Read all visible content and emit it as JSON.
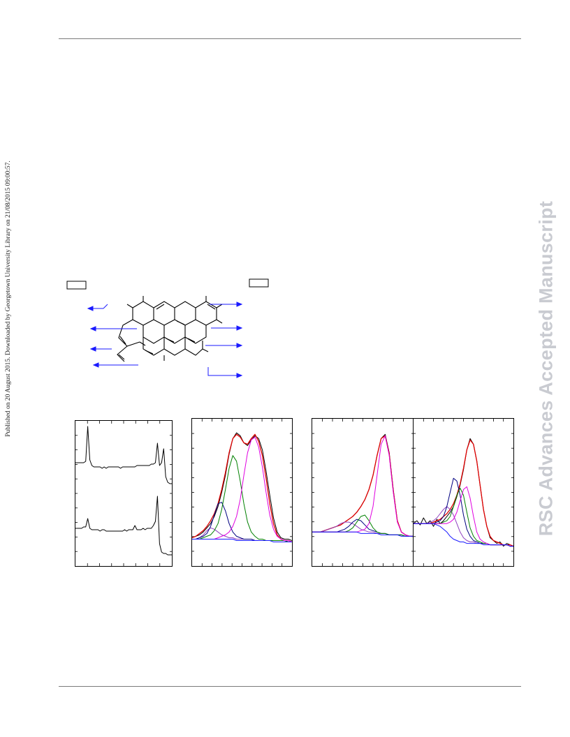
{
  "sidebar_note": "Published on 20 August 2015. Downloaded by Georgetown University Library on 21/08/2015 09:00:57.",
  "watermark": "RSC Advances Accepted Manuscript",
  "colors": {
    "raw": "#000000",
    "envelope": "#e00000",
    "peak_magenta": "#e000e0",
    "peak_green": "#008000",
    "peak_navy": "#000080",
    "peak_violet": "#9040c0",
    "baseline": "#1a1aff",
    "arrow": "#1a1aff",
    "rule": "#7a7a7a",
    "watermark": "#c9cbd1"
  },
  "scheme": {
    "label_box_left": "",
    "label_box_right": "",
    "arrows_left": 4,
    "arrows_right": 4
  },
  "chart_data": [
    {
      "type": "line",
      "title": "",
      "xlabel": "",
      "ylabel": "",
      "grid": false,
      "series": [
        {
          "values": [
            0.72,
            0.72,
            0.72,
            0.72,
            0.72,
            0.73,
            0.98,
            0.74,
            0.7,
            0.69,
            0.69,
            0.69,
            0.69,
            0.68,
            0.69,
            0.68,
            0.69,
            0.69,
            0.69,
            0.69,
            0.69,
            0.69,
            0.68,
            0.69,
            0.69,
            0.69,
            0.69,
            0.69,
            0.69,
            0.69,
            0.7,
            0.7,
            0.7,
            0.7,
            0.7,
            0.7,
            0.7,
            0.71,
            0.71,
            0.72,
            0.86,
            0.7,
            0.72,
            0.82,
            0.62,
            0.58,
            0.57,
            0.57
          ]
        },
        {
          "values": [
            0.25,
            0.25,
            0.25,
            0.25,
            0.26,
            0.26,
            0.32,
            0.25,
            0.24,
            0.24,
            0.24,
            0.24,
            0.23,
            0.24,
            0.24,
            0.23,
            0.23,
            0.23,
            0.23,
            0.23,
            0.23,
            0.23,
            0.23,
            0.23,
            0.24,
            0.23,
            0.24,
            0.24,
            0.24,
            0.27,
            0.24,
            0.24,
            0.24,
            0.25,
            0.24,
            0.25,
            0.25,
            0.25,
            0.27,
            0.3,
            0.48,
            0.14,
            0.08,
            0.07,
            0.07,
            0.06,
            0.06,
            0.06
          ]
        }
      ]
    },
    {
      "type": "line",
      "title": "",
      "xlabel": "",
      "ylabel": "",
      "grid": false,
      "series": [
        {
          "role": "raw",
          "values": [
            0.18,
            0.19,
            0.2,
            0.22,
            0.25,
            0.28,
            0.33,
            0.4,
            0.5,
            0.62,
            0.77,
            0.88,
            0.92,
            0.9,
            0.85,
            0.83,
            0.87,
            0.9,
            0.88,
            0.8,
            0.65,
            0.48,
            0.32,
            0.22,
            0.18,
            0.17,
            0.17,
            0.16
          ]
        },
        {
          "role": "envelope",
          "values": [
            0.18,
            0.19,
            0.21,
            0.23,
            0.26,
            0.3,
            0.35,
            0.42,
            0.52,
            0.64,
            0.78,
            0.88,
            0.91,
            0.89,
            0.85,
            0.84,
            0.88,
            0.91,
            0.86,
            0.76,
            0.6,
            0.42,
            0.28,
            0.2,
            0.17,
            0.16,
            0.16,
            0.15
          ]
        },
        {
          "role": "peak",
          "values": [
            0.17,
            0.17,
            0.18,
            0.2,
            0.23,
            0.25,
            0.24,
            0.22,
            0.2,
            0.19,
            0.18,
            0.18,
            0.17,
            0.17,
            0.17,
            0.17,
            0.17,
            0.16,
            0.16,
            0.16,
            0.16,
            0.16,
            0.16,
            0.16,
            0.16,
            0.16,
            0.15,
            0.15
          ]
        },
        {
          "role": "peak",
          "values": [
            0.17,
            0.17,
            0.18,
            0.19,
            0.21,
            0.26,
            0.34,
            0.42,
            0.43,
            0.37,
            0.28,
            0.22,
            0.19,
            0.18,
            0.17,
            0.17,
            0.17,
            0.16,
            0.16,
            0.16,
            0.16,
            0.16,
            0.16,
            0.16,
            0.16,
            0.16,
            0.15,
            0.15
          ]
        },
        {
          "role": "peak",
          "values": [
            0.17,
            0.17,
            0.17,
            0.18,
            0.19,
            0.2,
            0.23,
            0.28,
            0.38,
            0.52,
            0.67,
            0.76,
            0.72,
            0.58,
            0.42,
            0.29,
            0.22,
            0.19,
            0.17,
            0.17,
            0.16,
            0.16,
            0.16,
            0.16,
            0.16,
            0.16,
            0.15,
            0.15
          ]
        },
        {
          "role": "peak",
          "values": [
            0.17,
            0.17,
            0.17,
            0.17,
            0.17,
            0.17,
            0.17,
            0.18,
            0.19,
            0.2,
            0.22,
            0.26,
            0.33,
            0.45,
            0.62,
            0.78,
            0.87,
            0.89,
            0.82,
            0.68,
            0.5,
            0.34,
            0.24,
            0.19,
            0.17,
            0.16,
            0.16,
            0.15
          ]
        },
        {
          "role": "baseline",
          "values": [
            0.17,
            0.17,
            0.17,
            0.17,
            0.17,
            0.17,
            0.17,
            0.17,
            0.17,
            0.17,
            0.17,
            0.17,
            0.16,
            0.16,
            0.16,
            0.16,
            0.16,
            0.16,
            0.16,
            0.16,
            0.16,
            0.16,
            0.15,
            0.15,
            0.15,
            0.15,
            0.15,
            0.15
          ]
        }
      ]
    },
    {
      "type": "line",
      "title": "",
      "xlabel": "",
      "ylabel": "",
      "grid": false,
      "series": [
        {
          "role": "raw",
          "values": [
            0.22,
            0.22,
            0.22,
            0.23,
            0.24,
            0.25,
            0.26,
            0.27,
            0.29,
            0.31,
            0.33,
            0.36,
            0.4,
            0.45,
            0.52,
            0.62,
            0.76,
            0.88,
            0.91,
            0.78,
            0.52,
            0.3,
            0.22,
            0.2,
            0.19,
            0.19
          ]
        },
        {
          "role": "envelope",
          "values": [
            0.22,
            0.22,
            0.22,
            0.23,
            0.24,
            0.25,
            0.26,
            0.27,
            0.29,
            0.31,
            0.33,
            0.36,
            0.4,
            0.45,
            0.52,
            0.62,
            0.76,
            0.88,
            0.9,
            0.77,
            0.51,
            0.3,
            0.22,
            0.2,
            0.19,
            0.19
          ]
        },
        {
          "role": "peak",
          "values": [
            0.22,
            0.22,
            0.22,
            0.23,
            0.24,
            0.25,
            0.26,
            0.28,
            0.29,
            0.29,
            0.28,
            0.26,
            0.24,
            0.23,
            0.22,
            0.22,
            0.21,
            0.21,
            0.21,
            0.2,
            0.2,
            0.2,
            0.2,
            0.19,
            0.19,
            0.19
          ]
        },
        {
          "role": "peak",
          "values": [
            0.22,
            0.22,
            0.22,
            0.22,
            0.22,
            0.22,
            0.22,
            0.23,
            0.24,
            0.26,
            0.29,
            0.31,
            0.3,
            0.27,
            0.24,
            0.23,
            0.22,
            0.21,
            0.21,
            0.2,
            0.2,
            0.2,
            0.2,
            0.19,
            0.19,
            0.19
          ]
        },
        {
          "role": "peak",
          "values": [
            0.22,
            0.22,
            0.22,
            0.22,
            0.22,
            0.22,
            0.22,
            0.22,
            0.22,
            0.23,
            0.25,
            0.29,
            0.33,
            0.34,
            0.3,
            0.25,
            0.22,
            0.21,
            0.21,
            0.2,
            0.2,
            0.2,
            0.2,
            0.19,
            0.19,
            0.19
          ]
        },
        {
          "role": "peak",
          "values": [
            0.22,
            0.22,
            0.22,
            0.22,
            0.22,
            0.22,
            0.22,
            0.22,
            0.22,
            0.22,
            0.22,
            0.22,
            0.23,
            0.24,
            0.28,
            0.4,
            0.62,
            0.84,
            0.9,
            0.76,
            0.5,
            0.29,
            0.22,
            0.2,
            0.19,
            0.19
          ]
        },
        {
          "role": "baseline",
          "values": [
            0.22,
            0.22,
            0.22,
            0.22,
            0.22,
            0.22,
            0.22,
            0.22,
            0.22,
            0.22,
            0.22,
            0.22,
            0.21,
            0.21,
            0.21,
            0.21,
            0.21,
            0.2,
            0.2,
            0.2,
            0.2,
            0.2,
            0.19,
            0.19,
            0.19,
            0.19
          ]
        }
      ]
    },
    {
      "type": "line",
      "title": "",
      "xlabel": "",
      "ylabel": "",
      "grid": false,
      "series": [
        {
          "role": "raw",
          "values": [
            0.28,
            0.3,
            0.27,
            0.32,
            0.28,
            0.3,
            0.26,
            0.31,
            0.28,
            0.3,
            0.33,
            0.36,
            0.4,
            0.47,
            0.55,
            0.66,
            0.8,
            0.88,
            0.84,
            0.72,
            0.55,
            0.38,
            0.26,
            0.18,
            0.16,
            0.14,
            0.15,
            0.12,
            0.14,
            0.13,
            0.12
          ]
        },
        {
          "role": "envelope",
          "values": [
            0.28,
            0.28,
            0.28,
            0.28,
            0.28,
            0.28,
            0.29,
            0.3,
            0.31,
            0.33,
            0.35,
            0.38,
            0.42,
            0.48,
            0.56,
            0.67,
            0.8,
            0.87,
            0.84,
            0.72,
            0.55,
            0.38,
            0.26,
            0.19,
            0.16,
            0.15,
            0.14,
            0.13,
            0.13,
            0.13,
            0.12
          ]
        },
        {
          "role": "peak",
          "values": [
            0.28,
            0.28,
            0.28,
            0.28,
            0.28,
            0.29,
            0.3,
            0.32,
            0.35,
            0.38,
            0.4,
            0.38,
            0.34,
            0.28,
            0.22,
            0.18,
            0.16,
            0.15,
            0.15,
            0.14,
            0.14,
            0.14,
            0.14,
            0.13,
            0.13,
            0.13,
            0.13,
            0.13,
            0.13,
            0.12,
            0.12
          ]
        },
        {
          "role": "peak",
          "values": [
            0.28,
            0.28,
            0.28,
            0.28,
            0.28,
            0.28,
            0.28,
            0.29,
            0.3,
            0.33,
            0.4,
            0.5,
            0.6,
            0.58,
            0.48,
            0.34,
            0.24,
            0.19,
            0.16,
            0.15,
            0.14,
            0.14,
            0.14,
            0.13,
            0.13,
            0.13,
            0.13,
            0.13,
            0.13,
            0.12,
            0.12
          ]
        },
        {
          "role": "peak",
          "values": [
            0.28,
            0.28,
            0.28,
            0.28,
            0.28,
            0.28,
            0.28,
            0.28,
            0.28,
            0.29,
            0.3,
            0.33,
            0.4,
            0.48,
            0.53,
            0.48,
            0.36,
            0.25,
            0.19,
            0.16,
            0.15,
            0.14,
            0.14,
            0.13,
            0.13,
            0.13,
            0.13,
            0.13,
            0.13,
            0.12,
            0.12
          ]
        },
        {
          "role": "peak",
          "values": [
            0.28,
            0.28,
            0.28,
            0.28,
            0.28,
            0.28,
            0.28,
            0.28,
            0.28,
            0.28,
            0.28,
            0.29,
            0.31,
            0.36,
            0.44,
            0.52,
            0.54,
            0.46,
            0.33,
            0.22,
            0.17,
            0.15,
            0.14,
            0.13,
            0.13,
            0.13,
            0.13,
            0.13,
            0.13,
            0.12,
            0.12
          ]
        },
        {
          "role": "baseline",
          "values": [
            0.28,
            0.28,
            0.28,
            0.28,
            0.28,
            0.28,
            0.28,
            0.27,
            0.26,
            0.24,
            0.22,
            0.19,
            0.17,
            0.16,
            0.15,
            0.15,
            0.14,
            0.14,
            0.14,
            0.14,
            0.14,
            0.13,
            0.13,
            0.13,
            0.13,
            0.13,
            0.13,
            0.13,
            0.13,
            0.12,
            0.12
          ]
        }
      ]
    }
  ]
}
